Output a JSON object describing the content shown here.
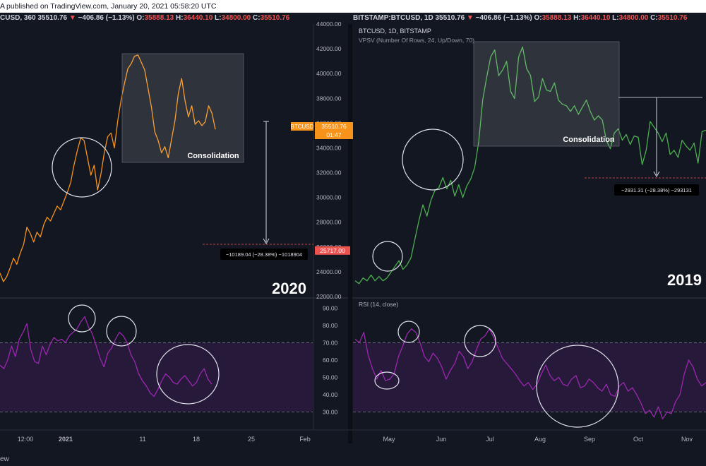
{
  "header": {
    "left": {
      "user_fragment": "A",
      "published": "published on TradingView.com, January 20, 2021 05:58:20 UTC",
      "symbol_fragment": "CUSD, 360",
      "price": "35510.76",
      "change": "−406.86 (−1.13%)",
      "o_label": "O:",
      "o_value": "35888.13",
      "h_label": "H:",
      "h_value": "36440.10",
      "l_label": "L:",
      "l_value": "34800.00",
      "c_label": "C:",
      "c_value": "35510.76"
    },
    "right": {
      "symbol": "BITSTAMP:BTCUSD, 1D",
      "price": "35510.76",
      "change": "−406.86 (−1.13%)",
      "o_label": "O:",
      "o_value": "35888.13",
      "h_label": "H:",
      "h_value": "36440.10",
      "l_label": "L:",
      "l_value": "34800.00",
      "c_label": "C:",
      "c_value": "35510.76"
    }
  },
  "footer": {
    "text": "ew"
  },
  "colors": {
    "background": "#131722",
    "left_price_line": "#f7931a",
    "right_price_line": "#4caf50",
    "rsi_line": "#9c27b0",
    "rsi_band": "#2a1a3e",
    "last_price_badge": "#f7931a",
    "target_badge": "#ef5350"
  },
  "chart_data": [
    {
      "type": "line",
      "panel": "left-price",
      "series": [
        {
          "values": [
            23900,
            23200,
            23600,
            24300,
            25100,
            24600,
            25500,
            26200,
            27600,
            27100,
            26400,
            27200,
            26800,
            27800,
            28400,
            28100,
            28700,
            29300,
            29000,
            29700,
            30400,
            31200,
            32600,
            33800,
            34800,
            34600,
            33200,
            31800,
            32600,
            30600,
            31900,
            33600,
            34900,
            35200,
            34000,
            36200,
            37900,
            39200,
            40400,
            40800,
            41400,
            41500,
            40900,
            40300,
            38800,
            37300,
            35300,
            34600,
            33600,
            34100,
            33200,
            34700,
            36200,
            38400,
            39600,
            37800,
            36500,
            37400,
            35900,
            36200,
            35800,
            36100,
            37400,
            36800,
            35500
          ]
        }
      ],
      "ylim": [
        22000,
        44000
      ],
      "y_ticks": [
        "44000.00",
        "42000.00",
        "40000.00",
        "38000.00",
        "36000.00",
        "34000.00",
        "32000.00",
        "30000.00",
        "28000.00",
        "26000.00",
        "24000.00",
        "22000.00"
      ],
      "x_ticks": [
        "12:00",
        "2021",
        "11",
        "18",
        "25",
        "Feb"
      ],
      "last_price_label": {
        "name": "BTCUSD",
        "value": "35510.76",
        "countdown": "01:47"
      },
      "target_label": "25717.00",
      "annotations": [
        "Consolidation",
        "−10189.04 (−28.38%) −1018904",
        "2020"
      ]
    },
    {
      "type": "line",
      "panel": "left-rsi",
      "series": [
        {
          "values": [
            57,
            55,
            60,
            68,
            62,
            72,
            76,
            81,
            66,
            59,
            58,
            68,
            63,
            69,
            73,
            71,
            72,
            70,
            74,
            76,
            78,
            82,
            85,
            79,
            75,
            68,
            61,
            56,
            64,
            67,
            72,
            76,
            74,
            70,
            63,
            59,
            52,
            48,
            45,
            41,
            39,
            43,
            48,
            52,
            50,
            47,
            46,
            49,
            51,
            48,
            45,
            47,
            52,
            55,
            49,
            46
          ]
        }
      ],
      "ylim": [
        20,
        95
      ],
      "bands": [
        30,
        70
      ],
      "y_ticks": [
        "90.00",
        "80.00",
        "70.00",
        "60.00",
        "50.00",
        "40.00",
        "30.00"
      ]
    },
    {
      "type": "line",
      "panel": "right-price",
      "title": "BTCUSD, 1D, BITSTAMP",
      "subtitle": "VPSV (Number Of Rows, 24, Up/Down, 70)",
      "series": [
        {
          "values": [
            7100,
            6900,
            7300,
            7100,
            7500,
            7100,
            7400,
            7100,
            7300,
            7700,
            8100,
            8500,
            7900,
            8200,
            8700,
            10000,
            11300,
            12400,
            11600,
            12700,
            13400,
            13600,
            14300,
            13500,
            14100,
            13000,
            13800,
            12900,
            13700,
            14200,
            15000,
            16800,
            19700,
            21300,
            22700,
            23200,
            21400,
            21800,
            22400,
            20300,
            19800,
            22700,
            23400,
            21900,
            21400,
            19600,
            19900,
            21200,
            20400,
            20300,
            20900,
            19700,
            19400,
            19300,
            18900,
            19300,
            18700,
            19200,
            19700,
            18900,
            18300,
            18600,
            18300,
            16900,
            16300,
            17400,
            17700,
            16900,
            17300,
            16600,
            17200,
            17100,
            15200,
            16200,
            18200,
            17800,
            17400,
            16800,
            17400,
            15900,
            16200,
            15700,
            16900,
            16500,
            16200,
            16700,
            15300,
            17500,
            17600
          ]
        }
      ],
      "ylim": [
        6000,
        25000
      ],
      "annotations": [
        "Consolidation",
        "−2931.31 (−28.38%) −293131",
        "2019"
      ]
    },
    {
      "type": "line",
      "panel": "right-rsi",
      "title": "RSI (14, close)",
      "series": [
        {
          "values": [
            72,
            70,
            76,
            63,
            55,
            49,
            54,
            48,
            49,
            52,
            62,
            68,
            75,
            78,
            76,
            70,
            62,
            59,
            64,
            61,
            56,
            49,
            54,
            58,
            65,
            62,
            55,
            59,
            66,
            72,
            74,
            78,
            73,
            67,
            61,
            58,
            55,
            52,
            48,
            45,
            47,
            43,
            46,
            52,
            57,
            51,
            48,
            50,
            46,
            45,
            49,
            51,
            44,
            45,
            49,
            47,
            44,
            42,
            46,
            40,
            39,
            45,
            47,
            42,
            44,
            40,
            35,
            29,
            31,
            27,
            33,
            26,
            30,
            29,
            36,
            40,
            52,
            60,
            56,
            49,
            45,
            47
          ]
        }
      ],
      "ylim": [
        20,
        95
      ],
      "bands": [
        30,
        70
      ],
      "x_ticks": [
        "May",
        "Jun",
        "Jul",
        "Aug",
        "Sep",
        "Oct",
        "Nov"
      ]
    }
  ]
}
